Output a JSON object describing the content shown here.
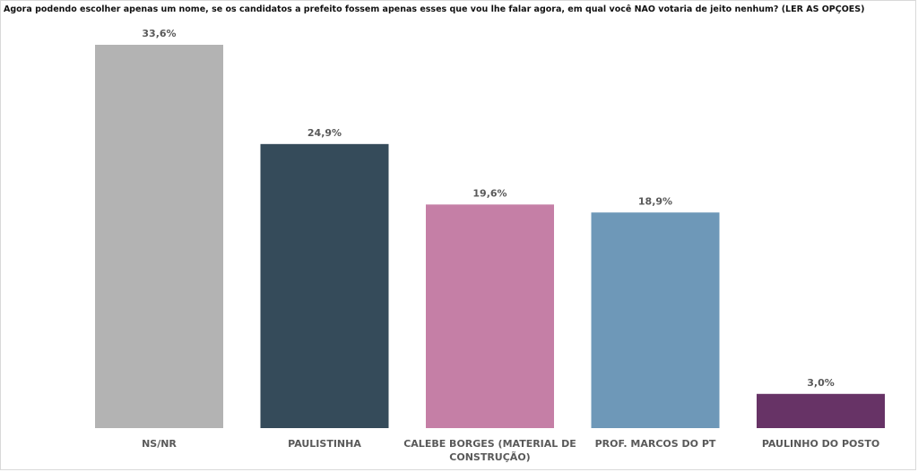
{
  "chart_data": {
    "type": "bar",
    "title": "Agora podendo escolher apenas um nome, se os candidatos a prefeito fossem apenas esses que vou lhe falar agora, em qual você NÃO votaria de jeito nenhum? (LER AS OPÇÕES)",
    "categories": [
      [
        "NS/NR"
      ],
      [
        "PAULISTINHA"
      ],
      [
        "CALEBE BORGES (MATERIAL DE",
        "CONSTRUÇÃO)"
      ],
      [
        "PROF. MARCOS DO PT"
      ],
      [
        "PAULINHO DO POSTO"
      ]
    ],
    "values": [
      33.6,
      24.9,
      19.6,
      18.9,
      3.0
    ],
    "value_labels": [
      "33,6%",
      "24,9%",
      "19,6%",
      "18,9%",
      "3,0%"
    ],
    "colors": [
      "#b3b3b3",
      "#354b5a",
      "#c57fa6",
      "#6e98b8",
      "#673366"
    ],
    "xlabel": "",
    "ylabel": "",
    "ylim": [
      0,
      33.6
    ],
    "grid": false,
    "legend": "none"
  }
}
